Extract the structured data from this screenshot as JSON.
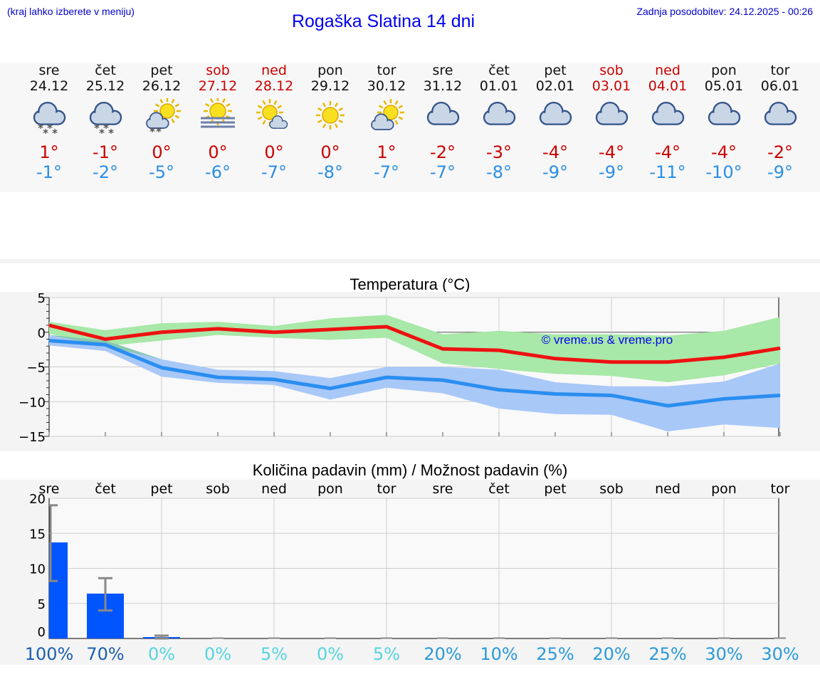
{
  "header": {
    "location_hint": "(kraj lahko izberete v meniju)",
    "title": "Rogaška Slatina 14 dni",
    "last_update": "Zadnja posodobitev: 24.12.2025 - 00:26"
  },
  "days": [
    {
      "name": "sre",
      "date": "24.12",
      "weekend": false,
      "icon": "cloud-snow-icon",
      "max": "1°",
      "min": "-1°"
    },
    {
      "name": "čet",
      "date": "25.12",
      "weekend": false,
      "icon": "cloud-snow-icon",
      "max": "-1°",
      "min": "-2°"
    },
    {
      "name": "pet",
      "date": "26.12",
      "weekend": false,
      "icon": "sun-cloud-snow-icon",
      "max": "0°",
      "min": "-5°"
    },
    {
      "name": "sob",
      "date": "27.12",
      "weekend": true,
      "icon": "sun-fog-icon",
      "max": "0°",
      "min": "-6°"
    },
    {
      "name": "ned",
      "date": "28.12",
      "weekend": true,
      "icon": "sun-small-cloud-icon",
      "max": "0°",
      "min": "-7°"
    },
    {
      "name": "pon",
      "date": "29.12",
      "weekend": false,
      "icon": "sun-icon",
      "max": "0°",
      "min": "-8°"
    },
    {
      "name": "tor",
      "date": "30.12",
      "weekend": false,
      "icon": "sun-cloud-icon",
      "max": "1°",
      "min": "-7°"
    },
    {
      "name": "sre",
      "date": "31.12",
      "weekend": false,
      "icon": "cloud-icon",
      "max": "-2°",
      "min": "-7°"
    },
    {
      "name": "čet",
      "date": "01.01",
      "weekend": false,
      "icon": "cloud-icon",
      "max": "-3°",
      "min": "-8°"
    },
    {
      "name": "pet",
      "date": "02.01",
      "weekend": false,
      "icon": "cloud-icon",
      "max": "-4°",
      "min": "-9°"
    },
    {
      "name": "sob",
      "date": "03.01",
      "weekend": true,
      "icon": "cloud-icon",
      "max": "-4°",
      "min": "-9°"
    },
    {
      "name": "ned",
      "date": "04.01",
      "weekend": true,
      "icon": "cloud-icon",
      "max": "-4°",
      "min": "-11°"
    },
    {
      "name": "pon",
      "date": "05.01",
      "weekend": false,
      "icon": "cloud-icon",
      "max": "-4°",
      "min": "-10°"
    },
    {
      "name": "tor",
      "date": "06.01",
      "weekend": false,
      "icon": "cloud-icon",
      "max": "-2°",
      "min": "-9°"
    }
  ],
  "colors": {
    "max_line": "#ee1111",
    "min_line": "#2a8ef0",
    "max_band": "#a8e8a8",
    "min_band": "#a8c8f8",
    "overlap_band": "#86c8b0",
    "bar": "#0055ff",
    "whisker": "#888888",
    "weekend": "#cc0000",
    "title": "#0000ee"
  },
  "chart_data": [
    {
      "type": "line",
      "title": "Temperatura (°C)",
      "watermark": "© vreme.us & vreme.pro",
      "ylim": [
        -15,
        5
      ],
      "yticks": [
        5,
        0,
        -5,
        -10,
        -15
      ],
      "ytick_labels": [
        "5",
        "0",
        "−5",
        "−10",
        "−15"
      ],
      "x": [
        0,
        1,
        2,
        3,
        4,
        5,
        6,
        7,
        8,
        9,
        10,
        11,
        12,
        13
      ],
      "series": [
        {
          "name": "max",
          "values": [
            1.0,
            -1.0,
            0.0,
            0.5,
            0.0,
            0.4,
            0.8,
            -2.4,
            -2.6,
            -3.8,
            -4.3,
            -4.3,
            -3.6,
            -2.3
          ],
          "band_low": [
            -0.2,
            -2.0,
            -1.2,
            -0.4,
            -0.8,
            -1.1,
            -0.8,
            -4.5,
            -5.3,
            -6.0,
            -6.3,
            -7.2,
            -6.2,
            -4.5
          ],
          "band_high": [
            1.5,
            0.3,
            1.3,
            1.5,
            0.9,
            2.0,
            2.5,
            -0.3,
            0.2,
            -0.3,
            -0.3,
            -0.5,
            0.2,
            2.2
          ]
        },
        {
          "name": "min",
          "values": [
            -1.2,
            -1.8,
            -5.1,
            -6.5,
            -6.8,
            -8.1,
            -6.5,
            -6.9,
            -8.3,
            -8.9,
            -9.1,
            -10.6,
            -9.6,
            -9.1
          ],
          "band_low": [
            -1.9,
            -2.7,
            -6.4,
            -7.3,
            -7.6,
            -9.7,
            -8.0,
            -8.8,
            -11.0,
            -11.8,
            -11.9,
            -14.3,
            -13.3,
            -13.8
          ],
          "band_high": [
            -0.4,
            -1.2,
            -3.9,
            -5.4,
            -5.6,
            -6.6,
            -5.0,
            -5.0,
            -5.4,
            -7.2,
            -7.8,
            -7.8,
            -7.1,
            -4.5
          ]
        }
      ]
    },
    {
      "type": "bar",
      "title": "Količina padavin (mm) / Možnost padavin (%)",
      "ylim": [
        0,
        20
      ],
      "yticks": [
        0,
        5,
        10,
        15,
        20
      ],
      "ytick_labels": [
        "0",
        "5",
        "10",
        "15",
        "20"
      ],
      "categories": [
        "sre",
        "čet",
        "pet",
        "sob",
        "ned",
        "pon",
        "tor",
        "sre",
        "čet",
        "pet",
        "sob",
        "ned",
        "pon",
        "tor"
      ],
      "values": [
        13.7,
        6.4,
        0.1,
        0,
        0,
        0,
        0,
        0,
        0,
        0,
        0,
        0,
        0,
        0
      ],
      "err_low": [
        8.2,
        4.0,
        0,
        0,
        0,
        0,
        0,
        0,
        0,
        0,
        0,
        0,
        0,
        0
      ],
      "err_high": [
        19.0,
        8.6,
        0.4,
        0,
        0,
        0,
        0,
        0,
        0,
        0,
        0,
        0,
        0,
        0
      ],
      "chance": [
        "100%",
        "70%",
        "0%",
        "0%",
        "5%",
        "0%",
        "5%",
        "20%",
        "10%",
        "25%",
        "20%",
        "25%",
        "30%",
        "30%"
      ],
      "chance_colors": [
        "#1a5fb0",
        "#1a5fb0",
        "#55d4e0",
        "#55d4e0",
        "#55d4e0",
        "#55d4e0",
        "#55d4e0",
        "#2a9ad8",
        "#2a9ad8",
        "#2a9ad8",
        "#2a9ad8",
        "#2a9ad8",
        "#2a9ad8",
        "#2a9ad8"
      ]
    }
  ]
}
